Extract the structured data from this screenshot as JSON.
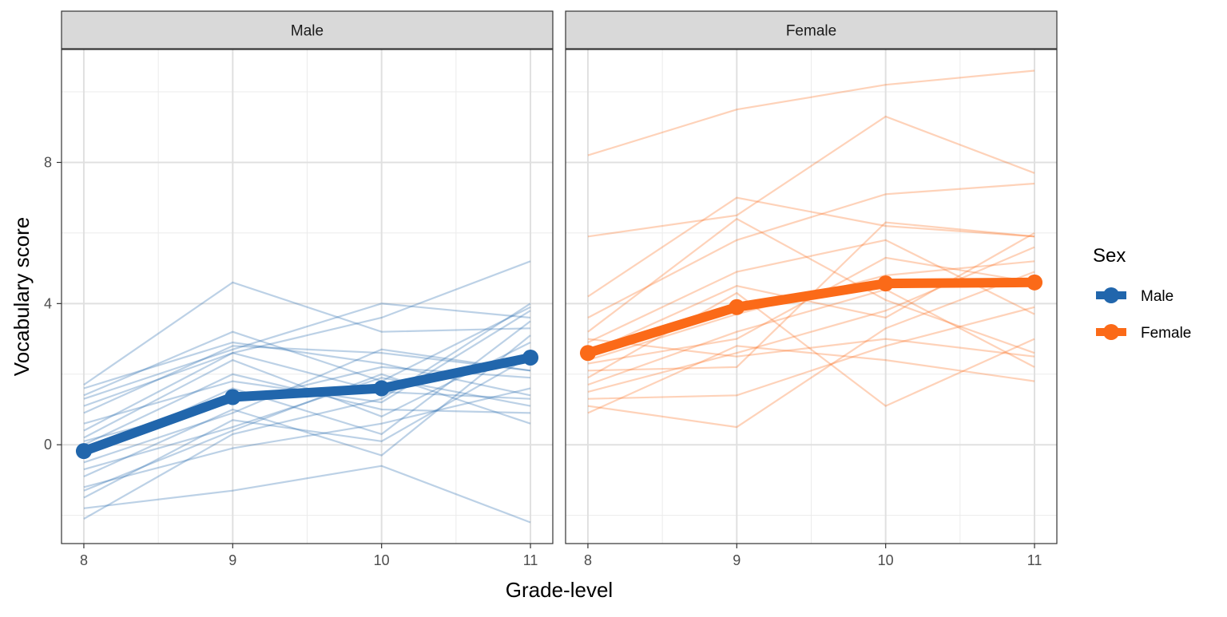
{
  "chart_data": {
    "type": "line",
    "xlabel": "Grade-level",
    "ylabel": "Vocabulary score",
    "x_ticks": [
      8,
      9,
      10,
      11
    ],
    "y_ticks": [
      0,
      4,
      8
    ],
    "xlim": [
      7.85,
      11.15
    ],
    "ylim": [
      -2.8,
      11.2
    ],
    "grid": true,
    "legend": {
      "title": "Sex",
      "position": "right",
      "entries": [
        {
          "label": "Male",
          "color": "#2166ac"
        },
        {
          "label": "Female",
          "color": "#fb6a18"
        }
      ]
    },
    "panels": [
      {
        "strip": "Male",
        "color": "#2166ac",
        "x": [
          8,
          9,
          10,
          11
        ],
        "mean": [
          -0.18,
          1.35,
          1.6,
          2.47
        ],
        "individuals": [
          [
            1.7,
            4.6,
            3.2,
            3.3
          ],
          [
            1.4,
            3.2,
            1.8,
            3.9
          ],
          [
            1.3,
            2.7,
            4.0,
            3.6
          ],
          [
            1.1,
            2.6,
            3.6,
            5.2
          ],
          [
            0.9,
            2.8,
            2.6,
            2.1
          ],
          [
            0.6,
            1.8,
            1.2,
            3.8
          ],
          [
            0.4,
            2.6,
            1.5,
            1.3
          ],
          [
            0.2,
            2.4,
            0.8,
            2.9
          ],
          [
            0.1,
            1.2,
            2.2,
            1.9
          ],
          [
            0.0,
            2.0,
            1.0,
            0.9
          ],
          [
            -0.3,
            1.6,
            0.3,
            3.5
          ],
          [
            -0.5,
            0.9,
            2.7,
            2.1
          ],
          [
            -0.7,
            0.5,
            1.9,
            1.1
          ],
          [
            -0.9,
            1.0,
            -0.3,
            3.1
          ],
          [
            -1.2,
            -0.1,
            0.6,
            1.6
          ],
          [
            -1.3,
            0.4,
            2.0,
            0.6
          ],
          [
            -1.5,
            0.7,
            0.1,
            2.5
          ],
          [
            -1.8,
            -1.3,
            -0.6,
            -2.2
          ],
          [
            -2.1,
            0.3,
            1.3,
            4.0
          ],
          [
            1.6,
            2.9,
            2.3,
            1.4
          ]
        ]
      },
      {
        "strip": "Female",
        "color": "#fb6a18",
        "x": [
          8,
          9,
          10,
          11
        ],
        "mean": [
          2.6,
          3.9,
          4.57,
          4.6
        ],
        "individuals": [
          [
            8.2,
            9.5,
            10.2,
            10.6
          ],
          [
            5.9,
            6.5,
            9.3,
            7.7
          ],
          [
            4.2,
            7.0,
            6.2,
            5.9
          ],
          [
            3.6,
            5.8,
            7.1,
            7.4
          ],
          [
            3.2,
            6.4,
            4.1,
            2.6
          ],
          [
            2.9,
            4.9,
            5.8,
            3.7
          ],
          [
            2.6,
            4.5,
            3.6,
            6.0
          ],
          [
            2.3,
            3.0,
            5.3,
            4.6
          ],
          [
            2.1,
            2.2,
            6.3,
            5.9
          ],
          [
            1.9,
            4.3,
            1.1,
            3.0
          ],
          [
            1.7,
            3.2,
            4.4,
            2.2
          ],
          [
            1.5,
            2.6,
            3.8,
            5.6
          ],
          [
            1.3,
            1.4,
            2.8,
            3.9
          ],
          [
            1.1,
            0.5,
            3.3,
            4.9
          ],
          [
            0.9,
            2.8,
            2.4,
            1.8
          ],
          [
            2.4,
            3.7,
            4.8,
            5.2
          ],
          [
            3.0,
            2.5,
            3.0,
            2.5
          ]
        ]
      }
    ]
  }
}
